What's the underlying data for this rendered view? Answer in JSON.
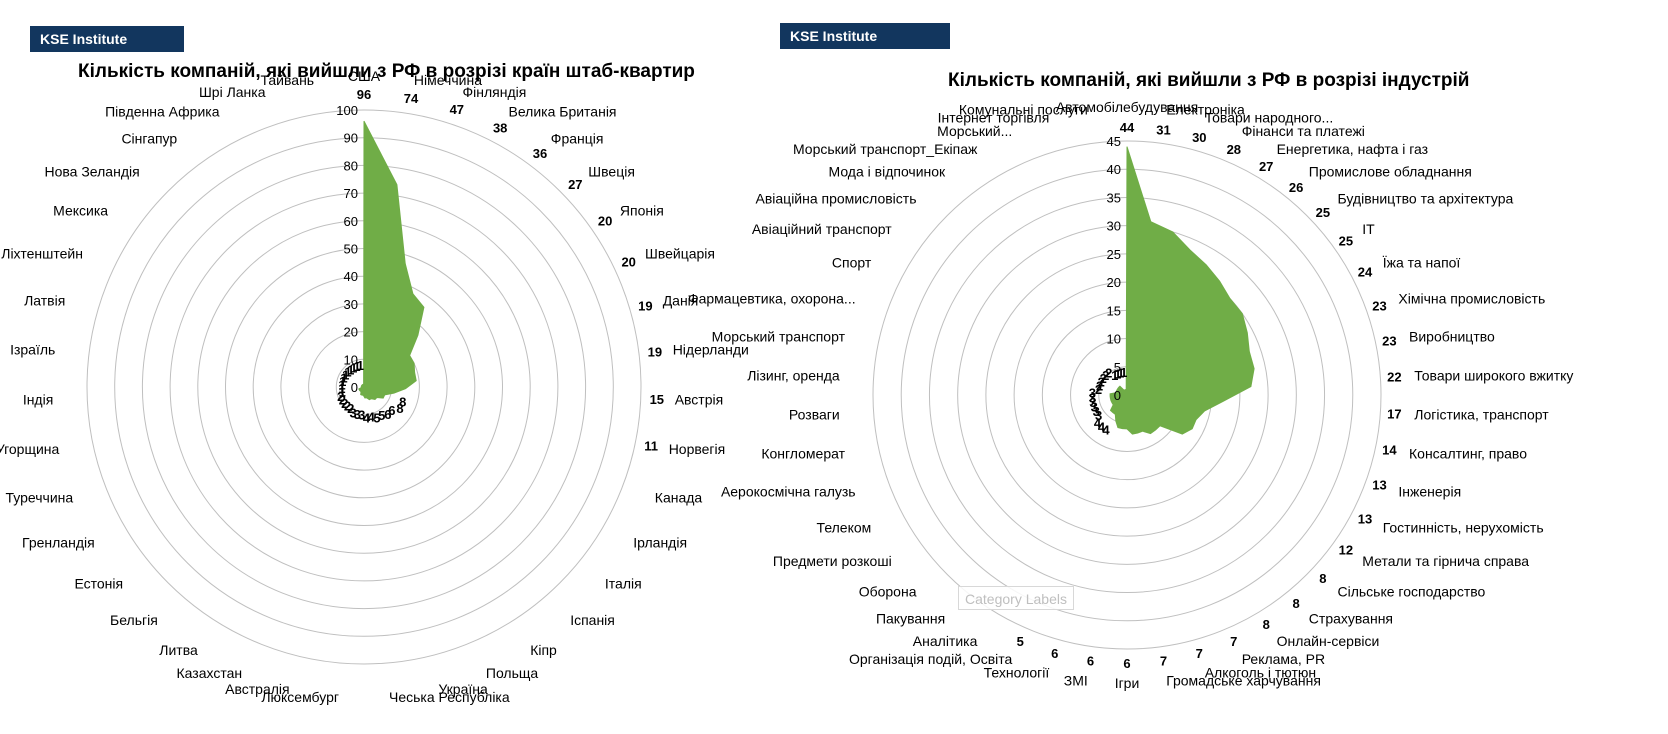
{
  "header": {
    "badge_left": "KSE Institute",
    "badge_right": "KSE Institute"
  },
  "tooltip": {
    "label": "Category Labels"
  },
  "colors": {
    "fill": "#70ad47",
    "ring": "#bfbfbf",
    "badge": "#12365e"
  },
  "chart_data": [
    {
      "type": "radar",
      "title": "Кількість компаній, які вийшли з РФ в розрізі країн штаб-квартир",
      "rlim": [
        0,
        100
      ],
      "rticks": [
        0,
        10,
        20,
        30,
        40,
        50,
        60,
        70,
        80,
        90,
        100
      ],
      "grid": true,
      "categories": [
        "США",
        "Німеччина",
        "Фінляндія",
        "Велика Британія",
        "Франція",
        "Швеція",
        "Японія",
        "Швейцарія",
        "Данія",
        "Нідерланди",
        "Австрія",
        "Норвегія",
        "Канада",
        "Ірландія",
        "Італія",
        "Іспанія",
        "Кіпр",
        "Польща",
        "Україна",
        "Чеська Республіка",
        "Люксембург",
        "Австралія",
        "Казахстан",
        "Литва",
        "Бельгія",
        "Естонія",
        "Гренландія",
        "Туреччина",
        "Угорщина",
        "Індія",
        "Ізраїль",
        "Латвія",
        "Ліхтенштейн",
        "Мексика",
        "Нова Зеландія",
        "Сінгапур",
        "Південна Африка",
        "Шрі Ланка",
        "Тайвань"
      ],
      "values": [
        96,
        74,
        47,
        38,
        36,
        27,
        20,
        20,
        19,
        19,
        15,
        11,
        8,
        8,
        6,
        6,
        5,
        5,
        4,
        4,
        3,
        3,
        3,
        2,
        2,
        2,
        2,
        2,
        1,
        1,
        1,
        1,
        1,
        1,
        1,
        1,
        1,
        1,
        1
      ]
    },
    {
      "type": "radar",
      "title": "Кількість компаній, які вийшли з РФ в розрізі індустрій",
      "rlim": [
        0,
        45
      ],
      "rticks": [
        0,
        5,
        10,
        15,
        20,
        25,
        30,
        35,
        40,
        45
      ],
      "grid": true,
      "categories": [
        "Автомобілебудування",
        "Електроніка",
        "Товари народного...",
        "Фінанси та платежі",
        "Енергетика, нафта і газ",
        "Промислове обладнання",
        "Будівництво та архітектура",
        "IT",
        "Їжа та напої",
        "Хімічна промисловість",
        "Виробництво",
        "Товари широкого вжитку",
        "Логістика, транспорт",
        "Консалтинг, право",
        "Інженерія",
        "Гостинність, нерухомість",
        "Метали та гірнича справа",
        "Сільське господарство",
        "Страхування",
        "Онлайн-сервіси",
        "Реклама, PR",
        "Алкоголь і тютюн",
        "Громадське харчування",
        "Ігри",
        "ЗМІ",
        "Технології",
        "Організація подій, Освіта",
        "Аналітика",
        "Пакування",
        "Оборона",
        "Предмети розкоші",
        "Телеком",
        "Аерокосмічна галузь",
        "Конгломерат",
        "Розваги",
        "Лізинг, оренда",
        "Морський транспорт",
        "Фармацевтика, охорона...",
        "Спорт",
        "Авіаційний транспорт",
        "Авіаційна промисловість",
        "Мода і відпочинок",
        "Морський транспорт_Екіпаж",
        "Морський...",
        "Інтернет торгівля",
        "Комунальні послуги"
      ],
      "values": [
        44,
        31,
        30,
        28,
        27,
        26,
        25,
        25,
        24,
        23,
        23,
        22,
        17,
        14,
        13,
        13,
        12,
        8,
        8,
        8,
        7,
        7,
        7,
        6,
        6,
        6,
        5,
        4,
        4,
        4,
        3,
        3,
        3,
        3,
        3,
        3,
        2,
        2,
        2,
        2,
        2,
        2,
        1,
        1,
        1,
        1
      ]
    }
  ]
}
